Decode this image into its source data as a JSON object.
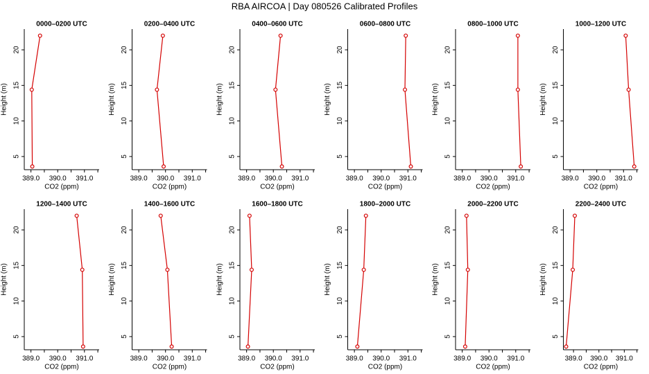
{
  "title": "RBA AIRCOA |  Day 080526  Calibrated Profiles",
  "chart_data": [
    {
      "type": "line",
      "title": "0000–0200 UTC",
      "x_label": "CO2 (ppm)",
      "y_label": "Height (m)",
      "series": [
        {
          "color": "#d40000",
          "x": [
            389.05,
            389.03,
            389.34
          ],
          "values": [
            3.6,
            14.4,
            22.0
          ]
        }
      ],
      "xlim": [
        388.75,
        391.55
      ],
      "ylim": [
        3.15,
        22.92
      ],
      "xticks": [
        {
          "value": 389,
          "label": "389.0"
        },
        {
          "value": 390,
          "label": "390.0"
        },
        {
          "value": 391,
          "label": "391.0"
        }
      ],
      "xminor_ticks": [
        389.5,
        390.5,
        391.5
      ],
      "yticks": [
        5,
        10,
        15,
        20
      ]
    },
    {
      "type": "line",
      "title": "0200–0400 UTC",
      "x_label": "CO2 (ppm)",
      "y_label": "Height (m)",
      "series": [
        {
          "color": "#d40000",
          "x": [
            389.93,
            389.68,
            389.9
          ],
          "values": [
            3.6,
            14.4,
            22.0
          ]
        }
      ],
      "xlim": [
        388.75,
        391.55
      ],
      "ylim": [
        3.15,
        22.92
      ],
      "xticks": [
        {
          "value": 389,
          "label": "389.0"
        },
        {
          "value": 390,
          "label": "390.0"
        },
        {
          "value": 391,
          "label": "391.0"
        }
      ],
      "xminor_ticks": [
        389.5,
        390.5,
        391.5
      ],
      "yticks": [
        5,
        10,
        15,
        20
      ]
    },
    {
      "type": "line",
      "title": "0400–0600 UTC",
      "x_label": "CO2 (ppm)",
      "y_label": "Height (m)",
      "series": [
        {
          "color": "#d40000",
          "x": [
            390.32,
            390.08,
            390.27
          ],
          "values": [
            3.6,
            14.4,
            22.0
          ]
        }
      ],
      "xlim": [
        388.75,
        391.55
      ],
      "ylim": [
        3.15,
        22.92
      ],
      "xticks": [
        {
          "value": 389,
          "label": "389.0"
        },
        {
          "value": 390,
          "label": "390.0"
        },
        {
          "value": 391,
          "label": "391.0"
        }
      ],
      "xminor_ticks": [
        389.5,
        390.5,
        391.5
      ],
      "yticks": [
        5,
        10,
        15,
        20
      ]
    },
    {
      "type": "line",
      "title": "0600–0800 UTC",
      "x_label": "CO2 (ppm)",
      "y_label": "Height (m)",
      "series": [
        {
          "color": "#d40000",
          "x": [
            391.11,
            390.89,
            390.92
          ],
          "values": [
            3.6,
            14.4,
            22.0
          ]
        }
      ],
      "xlim": [
        388.75,
        391.55
      ],
      "ylim": [
        3.15,
        22.92
      ],
      "xticks": [
        {
          "value": 389,
          "label": "389.0"
        },
        {
          "value": 390,
          "label": "390.0"
        },
        {
          "value": 391,
          "label": "391.0"
        }
      ],
      "xminor_ticks": [
        389.5,
        390.5,
        391.5
      ],
      "yticks": [
        5,
        10,
        15,
        20
      ]
    },
    {
      "type": "line",
      "title": "0800–1000 UTC",
      "x_label": "CO2 (ppm)",
      "y_label": "Height (m)",
      "series": [
        {
          "color": "#d40000",
          "x": [
            391.19,
            391.08,
            391.08
          ],
          "values": [
            3.6,
            14.4,
            22.0
          ]
        }
      ],
      "xlim": [
        388.75,
        391.55
      ],
      "ylim": [
        3.15,
        22.92
      ],
      "xticks": [
        {
          "value": 389,
          "label": "389.0"
        },
        {
          "value": 390,
          "label": "390.0"
        },
        {
          "value": 391,
          "label": "391.0"
        }
      ],
      "xminor_ticks": [
        389.5,
        390.5,
        391.5
      ],
      "yticks": [
        5,
        10,
        15,
        20
      ]
    },
    {
      "type": "line",
      "title": "1000–1200 UTC",
      "x_label": "CO2 (ppm)",
      "y_label": "Height (m)",
      "series": [
        {
          "color": "#d40000",
          "x": [
            391.4,
            391.19,
            391.08
          ],
          "values": [
            3.6,
            14.4,
            22.0
          ]
        }
      ],
      "xlim": [
        388.75,
        391.55
      ],
      "ylim": [
        3.15,
        22.92
      ],
      "xticks": [
        {
          "value": 389,
          "label": "389.0"
        },
        {
          "value": 390,
          "label": "390.0"
        },
        {
          "value": 391,
          "label": "391.0"
        }
      ],
      "xminor_ticks": [
        389.5,
        390.5,
        391.5
      ],
      "yticks": [
        5,
        10,
        15,
        20
      ]
    },
    {
      "type": "line",
      "title": "1200–1400 UTC",
      "x_label": "CO2 (ppm)",
      "y_label": "Height (m)",
      "series": [
        {
          "color": "#d40000",
          "x": [
            390.95,
            390.92,
            390.71
          ],
          "values": [
            3.6,
            14.4,
            22.0
          ]
        }
      ],
      "xlim": [
        388.75,
        391.55
      ],
      "ylim": [
        3.15,
        22.92
      ],
      "xticks": [
        {
          "value": 389,
          "label": "389.0"
        },
        {
          "value": 390,
          "label": "390.0"
        },
        {
          "value": 391,
          "label": "391.0"
        }
      ],
      "xminor_ticks": [
        389.5,
        390.5,
        391.5
      ],
      "yticks": [
        5,
        10,
        15,
        20
      ]
    },
    {
      "type": "line",
      "title": "1400–1600 UTC",
      "x_label": "CO2 (ppm)",
      "y_label": "Height (m)",
      "series": [
        {
          "color": "#d40000",
          "x": [
            390.23,
            390.07,
            389.82
          ],
          "values": [
            3.6,
            14.4,
            22.0
          ]
        }
      ],
      "xlim": [
        388.75,
        391.55
      ],
      "ylim": [
        3.15,
        22.92
      ],
      "xticks": [
        {
          "value": 389,
          "label": "389.0"
        },
        {
          "value": 390,
          "label": "390.0"
        },
        {
          "value": 391,
          "label": "391.0"
        }
      ],
      "xminor_ticks": [
        389.5,
        390.5,
        391.5
      ],
      "yticks": [
        5,
        10,
        15,
        20
      ]
    },
    {
      "type": "line",
      "title": "1600–1800 UTC",
      "x_label": "CO2 (ppm)",
      "y_label": "Height (m)",
      "series": [
        {
          "color": "#d40000",
          "x": [
            389.05,
            389.19,
            389.11
          ],
          "values": [
            3.6,
            14.4,
            22.0
          ]
        }
      ],
      "xlim": [
        388.75,
        391.55
      ],
      "ylim": [
        3.15,
        22.92
      ],
      "xticks": [
        {
          "value": 389,
          "label": "389.0"
        },
        {
          "value": 390,
          "label": "390.0"
        },
        {
          "value": 391,
          "label": "391.0"
        }
      ],
      "xminor_ticks": [
        389.5,
        390.5,
        391.5
      ],
      "yticks": [
        5,
        10,
        15,
        20
      ]
    },
    {
      "type": "line",
      "title": "1800–2000 UTC",
      "x_label": "CO2 (ppm)",
      "y_label": "Height (m)",
      "series": [
        {
          "color": "#d40000",
          "x": [
            389.11,
            389.35,
            389.43
          ],
          "values": [
            3.6,
            14.4,
            22.0
          ]
        }
      ],
      "xlim": [
        388.75,
        391.55
      ],
      "ylim": [
        3.15,
        22.92
      ],
      "xticks": [
        {
          "value": 389,
          "label": "389.0"
        },
        {
          "value": 390,
          "label": "390.0"
        },
        {
          "value": 391,
          "label": "391.0"
        }
      ],
      "xminor_ticks": [
        389.5,
        390.5,
        391.5
      ],
      "yticks": [
        5,
        10,
        15,
        20
      ]
    },
    {
      "type": "line",
      "title": "2000–2200 UTC",
      "x_label": "CO2 (ppm)",
      "y_label": "Height (m)",
      "series": [
        {
          "color": "#d40000",
          "x": [
            389.11,
            389.21,
            389.16
          ],
          "values": [
            3.6,
            14.4,
            22.0
          ]
        }
      ],
      "xlim": [
        388.75,
        391.55
      ],
      "ylim": [
        3.15,
        22.92
      ],
      "xticks": [
        {
          "value": 389,
          "label": "389.0"
        },
        {
          "value": 390,
          "label": "390.0"
        },
        {
          "value": 391,
          "label": "391.0"
        }
      ],
      "xminor_ticks": [
        389.5,
        390.5,
        391.5
      ],
      "yticks": [
        5,
        10,
        15,
        20
      ]
    },
    {
      "type": "line",
      "title": "2200–2400 UTC",
      "x_label": "CO2 (ppm)",
      "y_label": "Height (m)",
      "series": [
        {
          "color": "#d40000",
          "x": [
            388.71,
            388.97,
            389.05
          ],
          "values": [
            3.6,
            14.4,
            22.0
          ]
        }
      ],
      "xlim": [
        388.6,
        391.55
      ],
      "ylim": [
        3.15,
        22.92
      ],
      "xticks": [
        {
          "value": 389,
          "label": "389.0"
        },
        {
          "value": 390,
          "label": "390.0"
        },
        {
          "value": 391,
          "label": "391.0"
        }
      ],
      "xminor_ticks": [
        389.5,
        390.5,
        391.5
      ],
      "yticks": [
        5,
        10,
        15,
        20
      ]
    }
  ]
}
